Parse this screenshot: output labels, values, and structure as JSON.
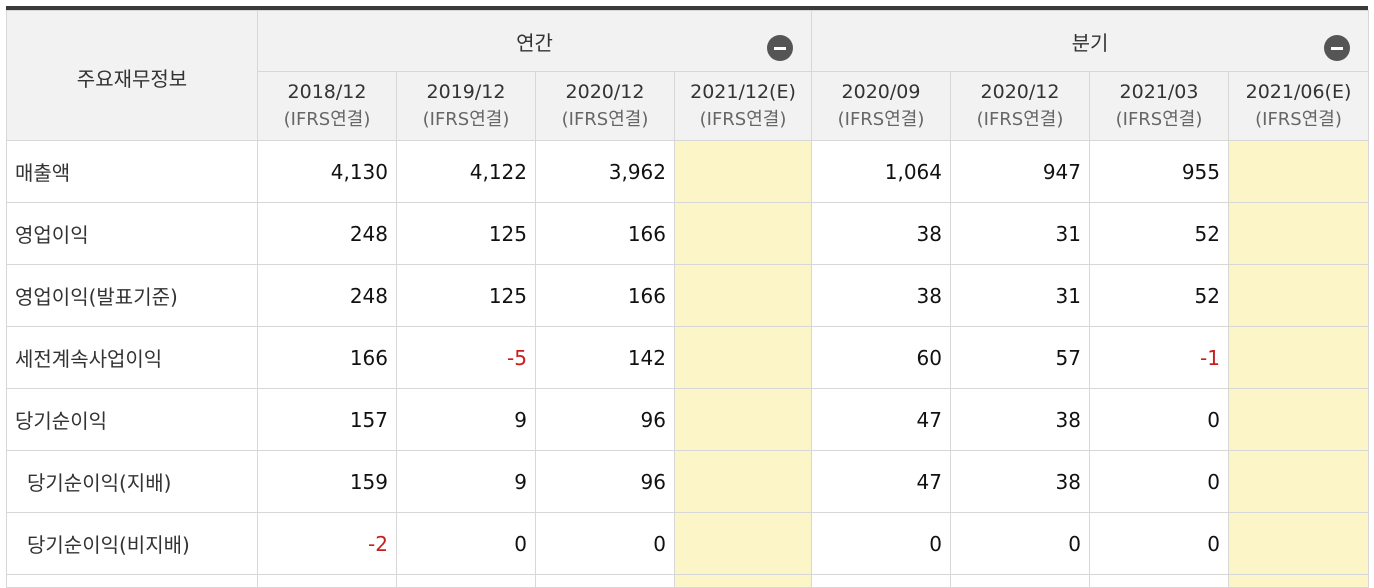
{
  "header": {
    "corner_label": "주요재무정보",
    "annual_label": "연간",
    "quarter_label": "분기",
    "annual_collapse_icon": "minus-circle-icon",
    "quarter_collapse_icon": "minus-circle-icon"
  },
  "columns": [
    {
      "period": "2018/12",
      "basis": "(IFRS연결)"
    },
    {
      "period": "2019/12",
      "basis": "(IFRS연결)"
    },
    {
      "period": "2020/12",
      "basis": "(IFRS연결)"
    },
    {
      "period": "2021/12(E)",
      "basis": "(IFRS연결)"
    },
    {
      "period": "2020/09",
      "basis": "(IFRS연결)"
    },
    {
      "period": "2020/12",
      "basis": "(IFRS연결)"
    },
    {
      "period": "2021/03",
      "basis": "(IFRS연결)"
    },
    {
      "period": "2021/06(E)",
      "basis": "(IFRS연결)"
    }
  ],
  "rows": [
    {
      "label": "매출액",
      "values": [
        "4,130",
        "4,122",
        "3,962",
        "",
        "1,064",
        "947",
        "955",
        ""
      ]
    },
    {
      "label": "영업이익",
      "values": [
        "248",
        "125",
        "166",
        "",
        "38",
        "31",
        "52",
        ""
      ]
    },
    {
      "label": "영업이익(발표기준)",
      "values": [
        "248",
        "125",
        "166",
        "",
        "38",
        "31",
        "52",
        ""
      ]
    },
    {
      "label": "세전계속사업이익",
      "values": [
        "166",
        "-5",
        "142",
        "",
        "60",
        "57",
        "-1",
        ""
      ]
    },
    {
      "label": "당기순이익",
      "values": [
        "157",
        "9",
        "96",
        "",
        "47",
        "38",
        "0",
        ""
      ]
    },
    {
      "label": "당기순이익(지배)",
      "values": [
        "159",
        "9",
        "96",
        "",
        "47",
        "38",
        "0",
        ""
      ]
    },
    {
      "label": "당기순이익(비지배)",
      "values": [
        "-2",
        "0",
        "0",
        "",
        "0",
        "0",
        "0",
        ""
      ]
    }
  ],
  "colors": {
    "header_bg": "#f2f2f2",
    "estimate_bg": "#fbf5c8",
    "negative": "#c81e1e",
    "top_border": "#3a3a3a"
  }
}
